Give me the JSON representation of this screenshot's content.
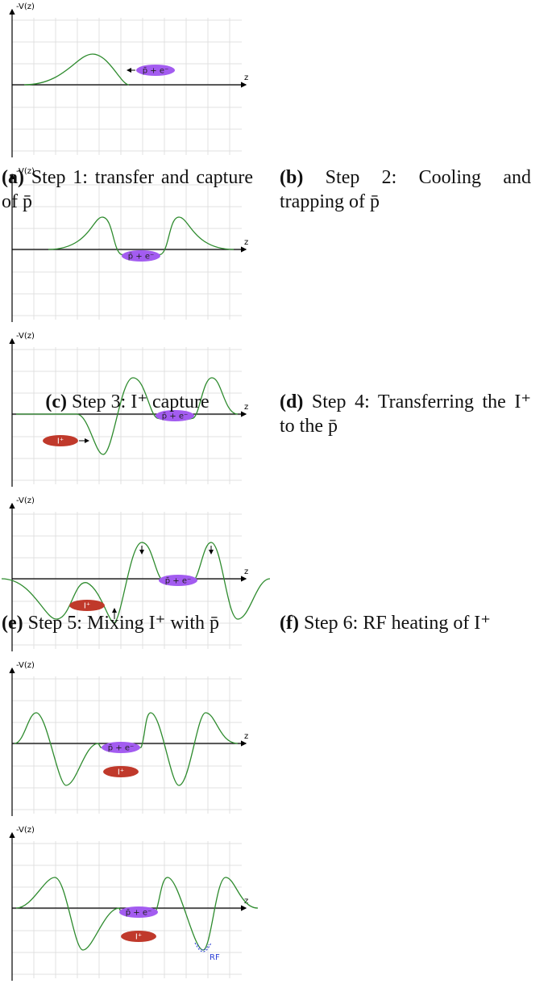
{
  "panels": [
    {
      "label": "(a)",
      "caption": "Step 1: transfer and capture of p̄",
      "y_axis": "-V(z)",
      "x_axis": "z",
      "particles": [
        "p̄ + e⁻"
      ]
    },
    {
      "label": "(b)",
      "caption": "Step 2: Cooling and trapping of p̄",
      "y_axis": "-V(z)",
      "x_axis": "z",
      "particles": [
        "p̄ + e⁻"
      ]
    },
    {
      "label": "(c)",
      "caption": "Step 3: I⁺ capture",
      "y_axis": "-V(z)",
      "x_axis": "z",
      "particles": [
        "p̄ + e⁻",
        "I⁺"
      ]
    },
    {
      "label": "(d)",
      "caption": "Step 4: Transferring the I⁺ to the p̄",
      "y_axis": "-V(z)",
      "x_axis": "z",
      "particles": [
        "p̄ + e⁻",
        "I⁺"
      ]
    },
    {
      "label": "(e)",
      "caption": "Step 5: Mixing I⁺ with p̄",
      "y_axis": "-V(z)",
      "x_axis": "z",
      "particles": [
        "p̄ + e⁻",
        "I⁺"
      ]
    },
    {
      "label": "(f)",
      "caption": "Step 6: RF heating of I⁺",
      "y_axis": "-V(z)",
      "x_axis": "z",
      "particles": [
        "p̄ + e⁻",
        "I⁺"
      ],
      "annotation": "RF"
    }
  ]
}
